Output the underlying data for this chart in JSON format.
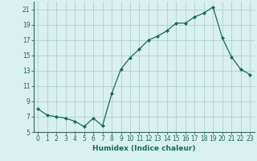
{
  "x": [
    0,
    1,
    2,
    3,
    4,
    5,
    6,
    7,
    8,
    9,
    10,
    11,
    12,
    13,
    14,
    15,
    16,
    17,
    18,
    19,
    20,
    21,
    22,
    23
  ],
  "y": [
    8.0,
    7.2,
    7.0,
    6.8,
    6.4,
    5.7,
    6.8,
    5.8,
    10.0,
    13.2,
    14.7,
    15.8,
    17.0,
    17.5,
    18.2,
    19.2,
    19.2,
    20.0,
    20.5,
    21.3,
    17.3,
    14.8,
    13.2,
    12.5
  ],
  "line_color": "#1a6b5a",
  "marker": "D",
  "marker_size": 2.0,
  "bg_color": "#d8f0ee",
  "grid_color": "#aed4cc",
  "xlabel": "Humidex (Indice chaleur)",
  "ylim": [
    5,
    22
  ],
  "xlim": [
    -0.5,
    23.5
  ],
  "yticks": [
    5,
    7,
    9,
    11,
    13,
    15,
    17,
    19,
    21
  ],
  "xtick_labels": [
    "0",
    "1",
    "2",
    "3",
    "4",
    "5",
    "6",
    "7",
    "8",
    "9",
    "10",
    "11",
    "12",
    "13",
    "14",
    "15",
    "16",
    "17",
    "18",
    "19",
    "20",
    "21",
    "22",
    "23"
  ],
  "tick_fontsize": 5.5,
  "xlabel_fontsize": 6.5
}
